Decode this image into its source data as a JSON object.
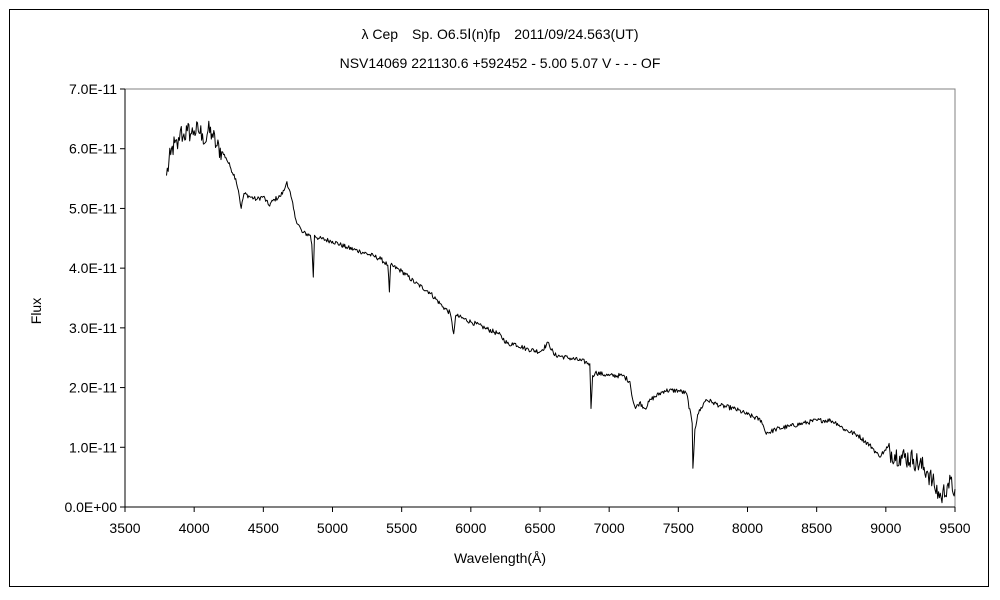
{
  "chart_data": {
    "type": "line",
    "title": "λ Cep　Sp. O6.5Ⅰ(n)fp　2011/09/24.563(UT)",
    "subtitle": "NSV14069 221130.6 +592452 - 5.00 5.07 V - - - OF",
    "xlabel": "Wavelength(Å)",
    "ylabel": "Flux",
    "xlim": [
      3500,
      9500
    ],
    "ylim": [
      0,
      7e-11
    ],
    "x_ticks": [
      "3500",
      "4000",
      "4500",
      "5000",
      "5500",
      "6000",
      "6500",
      "7000",
      "7500",
      "8000",
      "8500",
      "9000",
      "9500"
    ],
    "y_ticks": [
      "0.0E+00",
      "1.0E-11",
      "2.0E-11",
      "3.0E-11",
      "4.0E-11",
      "5.0E-11",
      "6.0E-11",
      "7.0E-11"
    ],
    "grid": false,
    "legend": "none",
    "line_color": "#000000",
    "series": [
      {
        "x": [
          3800,
          3830,
          3860,
          3880,
          3900,
          3920,
          3950,
          3980,
          4000,
          4030,
          4060,
          4080,
          4100,
          4130,
          4160,
          4200,
          4230,
          4260,
          4300,
          4320,
          4340,
          4360,
          4400,
          4450,
          4500,
          4540,
          4580,
          4620,
          4650,
          4670,
          4700,
          4730,
          4780,
          4840,
          4850,
          4861,
          4870,
          4900,
          5000,
          5100,
          5200,
          5300,
          5350,
          5400,
          5411,
          5420,
          5500,
          5600,
          5700,
          5800,
          5850,
          5876,
          5890,
          5900,
          6000,
          6100,
          6200,
          6280,
          6300,
          6400,
          6500,
          6563,
          6600,
          6700,
          6800,
          6860,
          6869,
          6880,
          6900,
          7000,
          7100,
          7150,
          7170,
          7190,
          7220,
          7260,
          7300,
          7400,
          7500,
          7560,
          7600,
          7605,
          7620,
          7640,
          7700,
          7750,
          7800,
          7900,
          8000,
          8100,
          8130,
          8160,
          8200,
          8300,
          8400,
          8500,
          8600,
          8650,
          8700,
          8800,
          8900,
          8950,
          9000,
          9100,
          9200,
          9300,
          9350,
          9400,
          9450,
          9500
        ],
        "y": [
          5.55e-11,
          5.9e-11,
          6.1e-11,
          6e-11,
          6.3e-11,
          6.2e-11,
          6.3e-11,
          6.25e-11,
          6.3e-11,
          6.3e-11,
          6.25e-11,
          6.1e-11,
          6.3e-11,
          6.25e-11,
          6.05e-11,
          5.95e-11,
          5.85e-11,
          5.7e-11,
          5.5e-11,
          5.3e-11,
          5e-11,
          5.25e-11,
          5.2e-11,
          5.15e-11,
          5.2e-11,
          5.05e-11,
          5.15e-11,
          5.2e-11,
          5.3e-11,
          5.45e-11,
          5.2e-11,
          4.85e-11,
          4.6e-11,
          4.55e-11,
          4.4e-11,
          3.85e-11,
          4.55e-11,
          4.5e-11,
          4.45e-11,
          4.35e-11,
          4.28e-11,
          4.2e-11,
          4.15e-11,
          4.05e-11,
          3.6e-11,
          4.05e-11,
          3.95e-11,
          3.75e-11,
          3.6e-11,
          3.35e-11,
          3.25e-11,
          2.9e-11,
          3.2e-11,
          3.2e-11,
          3.1e-11,
          3e-11,
          2.9e-11,
          2.7e-11,
          2.75e-11,
          2.65e-11,
          2.6e-11,
          2.75e-11,
          2.55e-11,
          2.5e-11,
          2.45e-11,
          2.4e-11,
          1.65e-11,
          2.2e-11,
          2.25e-11,
          2.2e-11,
          2.2e-11,
          2.1e-11,
          1.8e-11,
          1.65e-11,
          1.75e-11,
          1.65e-11,
          1.8e-11,
          1.95e-11,
          1.95e-11,
          1.9e-11,
          1.4e-11,
          6.5e-12,
          1.3e-11,
          1.55e-11,
          1.8e-11,
          1.75e-11,
          1.7e-11,
          1.65e-11,
          1.55e-11,
          1.45e-11,
          1.25e-11,
          1.25e-11,
          1.3e-11,
          1.35e-11,
          1.4e-11,
          1.45e-11,
          1.45e-11,
          1.4e-11,
          1.3e-11,
          1.2e-11,
          1e-11,
          8.5e-12,
          9.5e-12,
          8.5e-12,
          8e-12,
          6e-12,
          3.5e-12,
          1.5e-12,
          4e-12,
          3e-12
        ]
      }
    ]
  }
}
